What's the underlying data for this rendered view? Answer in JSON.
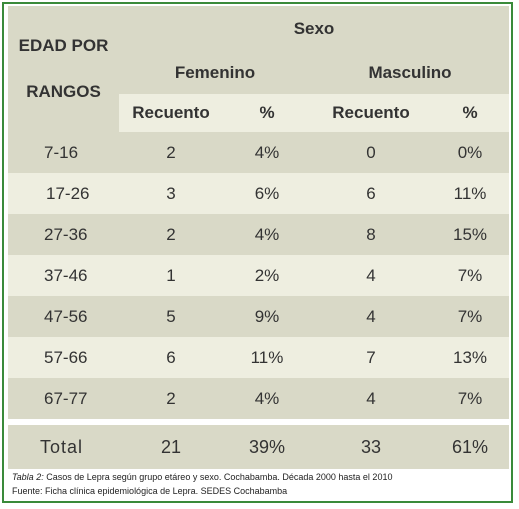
{
  "table": {
    "header": {
      "rangos_line1": "EDAD POR",
      "rangos_line2": "RANGOS",
      "sexo": "Sexo",
      "femenino": "Femenino",
      "masculino": "Masculino",
      "recuento": "Recuento",
      "pct": "%"
    },
    "rows": [
      {
        "rango": "7-16",
        "f_n": "2",
        "f_p": "4%",
        "m_n": "0",
        "m_p": "0%"
      },
      {
        "rango": "17-26",
        "f_n": "3",
        "f_p": "6%",
        "m_n": "6",
        "m_p": "11%"
      },
      {
        "rango": "27-36",
        "f_n": "2",
        "f_p": "4%",
        "m_n": "8",
        "m_p": "15%"
      },
      {
        "rango": "37-46",
        "f_n": "1",
        "f_p": "2%",
        "m_n": "4",
        "m_p": "7%"
      },
      {
        "rango": "47-56",
        "f_n": "5",
        "f_p": "9%",
        "m_n": "4",
        "m_p": "7%"
      },
      {
        "rango": "57-66",
        "f_n": "6",
        "f_p": "11%",
        "m_n": "7",
        "m_p": "13%"
      },
      {
        "rango": "67-77",
        "f_n": "2",
        "f_p": "4%",
        "m_n": "4",
        "m_p": "7%"
      }
    ],
    "total": {
      "label": "Total",
      "f_n": "21",
      "f_p": "39%",
      "m_n": "33",
      "m_p": "61%"
    }
  },
  "caption": {
    "label": "Tabla 2:",
    "text": "Casos de Lepra según grupo etáreo y sexo. Cochabamba. Década 2000 hasta el 2010",
    "source": "Fuente: Ficha clínica epidemiológica de Lepra. SEDES Cochabamba"
  },
  "colors": {
    "border": "#3a8a3a",
    "band_dark": "#d9d9c7",
    "band_light": "#eeeee0"
  }
}
